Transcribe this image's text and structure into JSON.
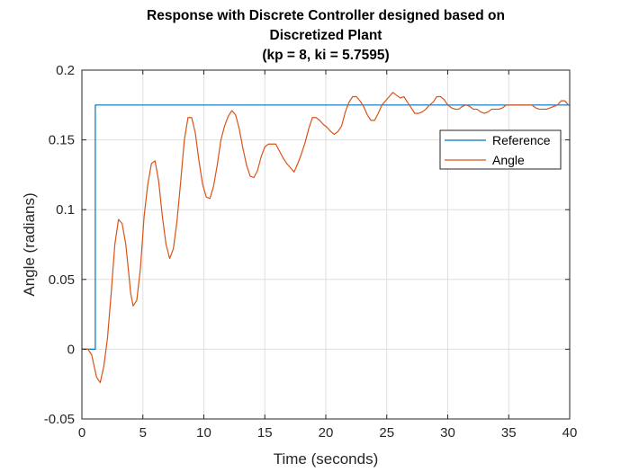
{
  "chart_data": {
    "type": "line",
    "title_lines": [
      "Response with Discrete Controller designed based on",
      "Discretized Plant",
      "(kp = 8, ki = 5.7595)"
    ],
    "xlabel": "Time (seconds)",
    "ylabel": "Angle (radians)",
    "xlim": [
      0,
      40
    ],
    "ylim": [
      -0.05,
      0.2
    ],
    "xticks": [
      0,
      5,
      10,
      15,
      20,
      25,
      30,
      35,
      40
    ],
    "xtick_labels": [
      "0",
      "5",
      "10",
      "15",
      "20",
      "25",
      "30",
      "35",
      "40"
    ],
    "yticks": [
      -0.05,
      0,
      0.05,
      0.1,
      0.15,
      0.2
    ],
    "ytick_labels": [
      "-0.05",
      "0",
      "0.05",
      "0.1",
      "0.15",
      "0.2"
    ],
    "grid": true,
    "legend_position": "top-right",
    "series": [
      {
        "name": "Reference",
        "color": "#0072BD",
        "x": [
          0,
          0.8,
          0.8,
          1.1,
          1.1,
          40
        ],
        "y": [
          0,
          0,
          0,
          0,
          0.175,
          0.175
        ]
      },
      {
        "name": "Angle",
        "color": "#D95319",
        "x": [
          0,
          0.5,
          0.8,
          1.0,
          1.2,
          1.5,
          1.8,
          2.1,
          2.4,
          2.7,
          3.0,
          3.3,
          3.6,
          3.8,
          4.0,
          4.2,
          4.5,
          4.8,
          5.1,
          5.4,
          5.7,
          6.0,
          6.3,
          6.6,
          6.9,
          7.2,
          7.5,
          7.8,
          8.1,
          8.4,
          8.7,
          9.0,
          9.3,
          9.6,
          9.9,
          10.2,
          10.5,
          10.8,
          11.1,
          11.4,
          11.7,
          12.0,
          12.3,
          12.6,
          12.9,
          13.2,
          13.5,
          13.8,
          14.1,
          14.4,
          14.7,
          15.0,
          15.3,
          15.6,
          15.9,
          16.2,
          16.5,
          16.8,
          17.1,
          17.4,
          17.7,
          18.0,
          18.3,
          18.6,
          18.9,
          19.2,
          19.5,
          19.8,
          20.1,
          20.4,
          20.7,
          21.0,
          21.3,
          21.6,
          21.9,
          22.2,
          22.5,
          22.8,
          23.1,
          23.4,
          23.7,
          24.0,
          24.3,
          24.6,
          24.9,
          25.2,
          25.5,
          25.8,
          26.1,
          26.4,
          26.7,
          27.0,
          27.3,
          27.6,
          27.9,
          28.2,
          28.5,
          28.8,
          29.1,
          29.4,
          29.7,
          30.0,
          30.3,
          30.6,
          30.9,
          31.2,
          31.5,
          31.8,
          32.1,
          32.4,
          32.7,
          33.0,
          33.3,
          33.6,
          33.9,
          34.2,
          34.5,
          34.8,
          35.1,
          35.4,
          35.7,
          36.0,
          36.3,
          36.6,
          36.9,
          37.2,
          37.5,
          37.8,
          38.1,
          38.4,
          38.7,
          39.0,
          39.3,
          39.6,
          39.9
        ],
        "y": [
          0,
          0,
          -0.004,
          -0.012,
          -0.02,
          -0.024,
          -0.012,
          0.008,
          0.04,
          0.075,
          0.093,
          0.09,
          0.075,
          0.058,
          0.04,
          0.031,
          0.035,
          0.058,
          0.095,
          0.118,
          0.133,
          0.135,
          0.12,
          0.095,
          0.075,
          0.065,
          0.072,
          0.092,
          0.12,
          0.15,
          0.166,
          0.166,
          0.155,
          0.135,
          0.118,
          0.109,
          0.108,
          0.117,
          0.132,
          0.15,
          0.16,
          0.167,
          0.171,
          0.168,
          0.158,
          0.144,
          0.132,
          0.124,
          0.123,
          0.128,
          0.138,
          0.145,
          0.147,
          0.147,
          0.147,
          0.142,
          0.137,
          0.133,
          0.13,
          0.127,
          0.133,
          0.14,
          0.148,
          0.158,
          0.166,
          0.166,
          0.164,
          0.161,
          0.159,
          0.156,
          0.154,
          0.156,
          0.16,
          0.17,
          0.177,
          0.181,
          0.181,
          0.178,
          0.174,
          0.168,
          0.164,
          0.164,
          0.169,
          0.175,
          0.178,
          0.181,
          0.184,
          0.182,
          0.18,
          0.181,
          0.177,
          0.173,
          0.169,
          0.169,
          0.17,
          0.172,
          0.175,
          0.177,
          0.181,
          0.181,
          0.179,
          0.175,
          0.173,
          0.172,
          0.172,
          0.174,
          0.175,
          0.174,
          0.172,
          0.172,
          0.17,
          0.169,
          0.17,
          0.172,
          0.172,
          0.172,
          0.173,
          0.175,
          0.175,
          0.175,
          0.175,
          0.175,
          0.175,
          0.175,
          0.175,
          0.173,
          0.172,
          0.172,
          0.172,
          0.173,
          0.174,
          0.175,
          0.178,
          0.178,
          0.175
        ]
      }
    ]
  }
}
